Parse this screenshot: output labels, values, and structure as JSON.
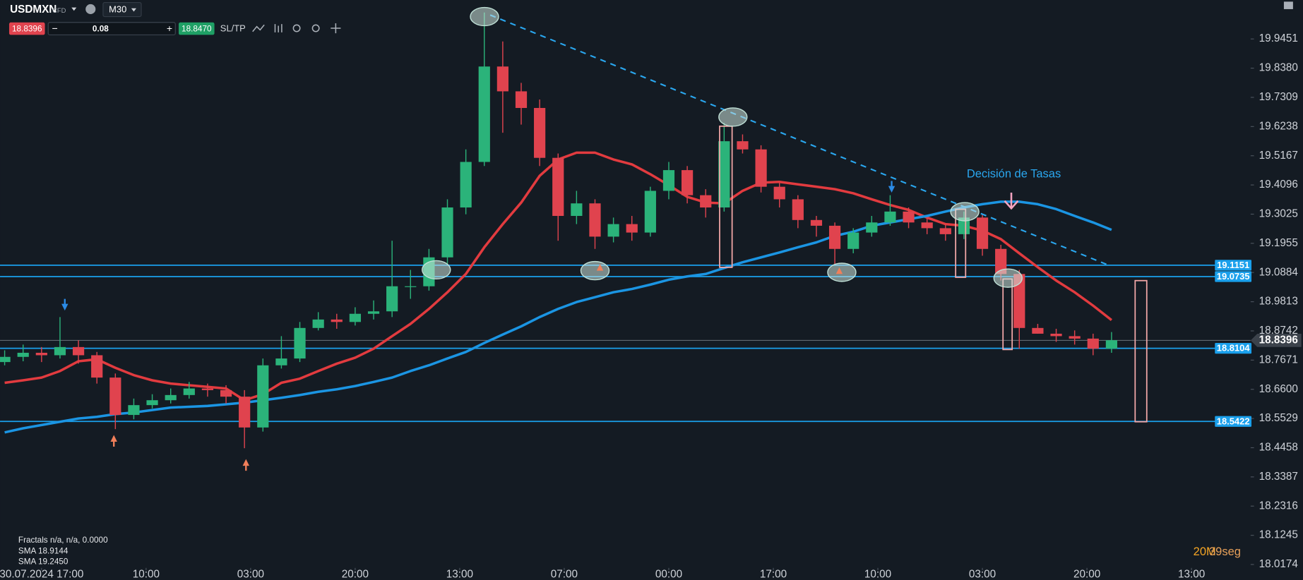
{
  "toolbar": {
    "symbol": "USDMXN",
    "kind": "CFD",
    "timeframe": "M30",
    "sell": "18.8396",
    "quantity": "0.08",
    "buy": "18.8470",
    "sltp": "SL/TP",
    "minus": "−",
    "plus": "+"
  },
  "timer": {
    "minutes": "20M",
    "seconds": "39seg"
  },
  "chart_data": {
    "type": "candlestick",
    "up_color": "#2bb37a",
    "down_color": "#e0434e",
    "ylim": [
      18.005,
      20.088
    ],
    "yticks": [
      19.9451,
      {
        "value": 19.838,
        "label": "19.8380"
      },
      19.7309,
      19.6238,
      19.5167,
      19.4096,
      19.3025,
      19.1955,
      19.0884,
      18.9813,
      18.8742,
      18.7671,
      {
        "value": 18.66,
        "label": "18.6600"
      },
      18.5529,
      18.4458,
      18.3387,
      18.2316,
      18.1245,
      18.0174
    ],
    "xlim": [
      -0.252,
      67.54
    ],
    "xticks": [
      {
        "value": 2,
        "label": "30.07.2024 17:00"
      },
      {
        "value": 7.667,
        "label": "10:00"
      },
      {
        "value": 13.333,
        "label": "03:00"
      },
      {
        "value": 19,
        "label": "20:00"
      },
      {
        "value": 24.667,
        "label": "13:00"
      },
      {
        "value": 30.333,
        "label": "07:00"
      },
      {
        "value": 36,
        "label": "00:00"
      },
      {
        "value": 41.667,
        "label": "17:00"
      },
      {
        "value": 47.333,
        "label": "10:00"
      },
      {
        "value": 53,
        "label": "03:00"
      },
      {
        "value": 58.667,
        "label": "20:00"
      },
      {
        "value": 64.333,
        "label": "13:00"
      }
    ],
    "grid": false,
    "ohlc": [
      [
        18.76,
        18.803,
        18.748,
        18.779
      ],
      [
        18.779,
        18.824,
        18.763,
        18.794
      ],
      [
        18.794,
        18.815,
        18.76,
        18.785
      ],
      [
        18.785,
        18.925,
        18.773,
        18.815
      ],
      [
        18.815,
        18.84,
        18.754,
        18.785
      ],
      [
        18.785,
        18.797,
        18.681,
        18.703
      ],
      [
        18.703,
        18.718,
        18.514,
        18.566
      ],
      [
        18.566,
        18.626,
        18.55,
        18.602
      ],
      [
        18.602,
        18.642,
        18.59,
        18.62
      ],
      [
        18.62,
        18.663,
        18.608,
        18.639
      ],
      [
        18.639,
        18.687,
        18.626,
        18.663
      ],
      [
        18.663,
        18.681,
        18.633,
        18.657
      ],
      [
        18.657,
        18.675,
        18.608,
        18.633
      ],
      [
        18.633,
        18.657,
        18.444,
        18.52
      ],
      [
        18.52,
        18.773,
        18.505,
        18.748
      ],
      [
        18.748,
        18.855,
        18.736,
        18.773
      ],
      [
        18.773,
        18.907,
        18.76,
        18.885
      ],
      [
        18.885,
        18.943,
        18.876,
        18.916
      ],
      [
        18.916,
        18.937,
        18.882,
        18.907
      ],
      [
        18.907,
        18.961,
        18.894,
        18.937
      ],
      [
        18.937,
        18.986,
        18.916,
        18.946
      ],
      [
        18.946,
        19.205,
        18.925,
        19.038
      ],
      [
        19.038,
        19.098,
        18.992,
        19.038
      ],
      [
        19.038,
        19.175,
        19.022,
        19.144
      ],
      [
        19.144,
        19.357,
        19.12,
        19.327
      ],
      [
        19.327,
        19.54,
        19.302,
        19.494
      ],
      [
        19.494,
        20.042,
        19.479,
        19.844
      ],
      [
        19.844,
        19.936,
        19.601,
        19.753
      ],
      [
        19.753,
        19.784,
        19.631,
        19.692
      ],
      [
        19.692,
        19.723,
        19.479,
        19.509
      ],
      [
        19.509,
        19.525,
        19.205,
        19.296
      ],
      [
        19.296,
        19.388,
        19.266,
        19.342
      ],
      [
        19.342,
        19.357,
        19.175,
        19.22
      ],
      [
        19.22,
        19.29,
        19.199,
        19.266
      ],
      [
        19.266,
        19.296,
        19.205,
        19.235
      ],
      [
        19.235,
        19.403,
        19.22,
        19.388
      ],
      [
        19.388,
        19.494,
        19.357,
        19.464
      ],
      [
        19.464,
        19.479,
        19.342,
        19.372
      ],
      [
        19.372,
        19.394,
        19.29,
        19.327
      ],
      [
        19.327,
        19.637,
        19.312,
        19.57
      ],
      [
        19.57,
        19.595,
        19.525,
        19.54
      ],
      [
        19.54,
        19.555,
        19.382,
        19.403
      ],
      [
        19.403,
        19.418,
        19.327,
        19.357
      ],
      [
        19.357,
        19.372,
        19.251,
        19.281
      ],
      [
        19.281,
        19.296,
        19.22,
        19.26
      ],
      [
        19.26,
        19.272,
        19.12,
        19.175
      ],
      [
        19.175,
        19.251,
        19.159,
        19.235
      ],
      [
        19.235,
        19.296,
        19.22,
        19.272
      ],
      [
        19.272,
        19.372,
        19.26,
        19.312
      ],
      [
        19.312,
        19.327,
        19.251,
        19.272
      ],
      [
        19.272,
        19.29,
        19.229,
        19.251
      ],
      [
        19.251,
        19.266,
        19.205,
        19.229
      ],
      [
        19.229,
        19.312,
        19.211,
        19.29
      ],
      [
        19.29,
        19.302,
        19.15,
        19.175
      ],
      [
        19.175,
        19.19,
        19.059,
        19.083
      ],
      [
        19.083,
        19.098,
        18.809,
        18.885
      ],
      [
        18.885,
        18.9,
        18.864,
        18.864
      ],
      [
        18.864,
        18.882,
        18.834,
        18.855
      ],
      [
        18.855,
        18.876,
        18.824,
        18.846
      ],
      [
        18.846,
        18.864,
        18.785,
        18.809
      ],
      [
        18.809,
        18.87,
        18.794,
        18.84
      ]
    ],
    "series": [
      {
        "name": "SMA 18.9144",
        "color": "#e23b3f",
        "values": [
          18.684,
          18.693,
          18.703,
          18.727,
          18.763,
          18.77,
          18.739,
          18.712,
          18.693,
          18.681,
          18.675,
          18.669,
          18.663,
          18.62,
          18.642,
          18.684,
          18.699,
          18.727,
          18.754,
          18.776,
          18.809,
          18.855,
          18.9,
          18.955,
          19.016,
          19.083,
          19.181,
          19.266,
          19.345,
          19.443,
          19.503,
          19.528,
          19.528,
          19.503,
          19.485,
          19.449,
          19.409,
          19.366,
          19.345,
          19.342,
          19.388,
          19.418,
          19.421,
          19.412,
          19.403,
          19.394,
          19.379,
          19.357,
          19.336,
          19.318,
          19.29,
          19.266,
          19.26,
          19.242,
          19.211,
          19.159,
          19.108,
          19.059,
          19.016,
          18.967,
          18.914
        ]
      },
      {
        "name": "SMA 19.2450",
        "color": "#1b95e3",
        "values": [
          18.502,
          18.517,
          18.529,
          18.541,
          18.553,
          18.559,
          18.569,
          18.575,
          18.584,
          18.593,
          18.596,
          18.599,
          18.605,
          18.611,
          18.62,
          18.629,
          18.639,
          18.651,
          18.66,
          18.672,
          18.687,
          18.703,
          18.727,
          18.748,
          18.773,
          18.797,
          18.83,
          18.861,
          18.891,
          18.925,
          18.955,
          18.98,
          18.998,
          19.016,
          19.028,
          19.044,
          19.062,
          19.074,
          19.083,
          19.105,
          19.126,
          19.144,
          19.162,
          19.181,
          19.199,
          19.223,
          19.238,
          19.26,
          19.272,
          19.284,
          19.296,
          19.312,
          19.327,
          19.339,
          19.348,
          19.348,
          19.339,
          19.321,
          19.296,
          19.272,
          19.245
        ]
      }
    ],
    "indicator_label": "Fractals n/a, n/a, 0.0000",
    "levels": [
      19.1151,
      19.0735,
      18.8104,
      18.5422
    ],
    "level_color": "#1aa0ec",
    "current_price": 18.8396,
    "trendline": {
      "from": [
        26.32,
        20.033
      ],
      "to": [
        59.88,
        19.114
      ],
      "color": "#2aa7ef"
    },
    "annotation": "Decisión de Tasas"
  }
}
